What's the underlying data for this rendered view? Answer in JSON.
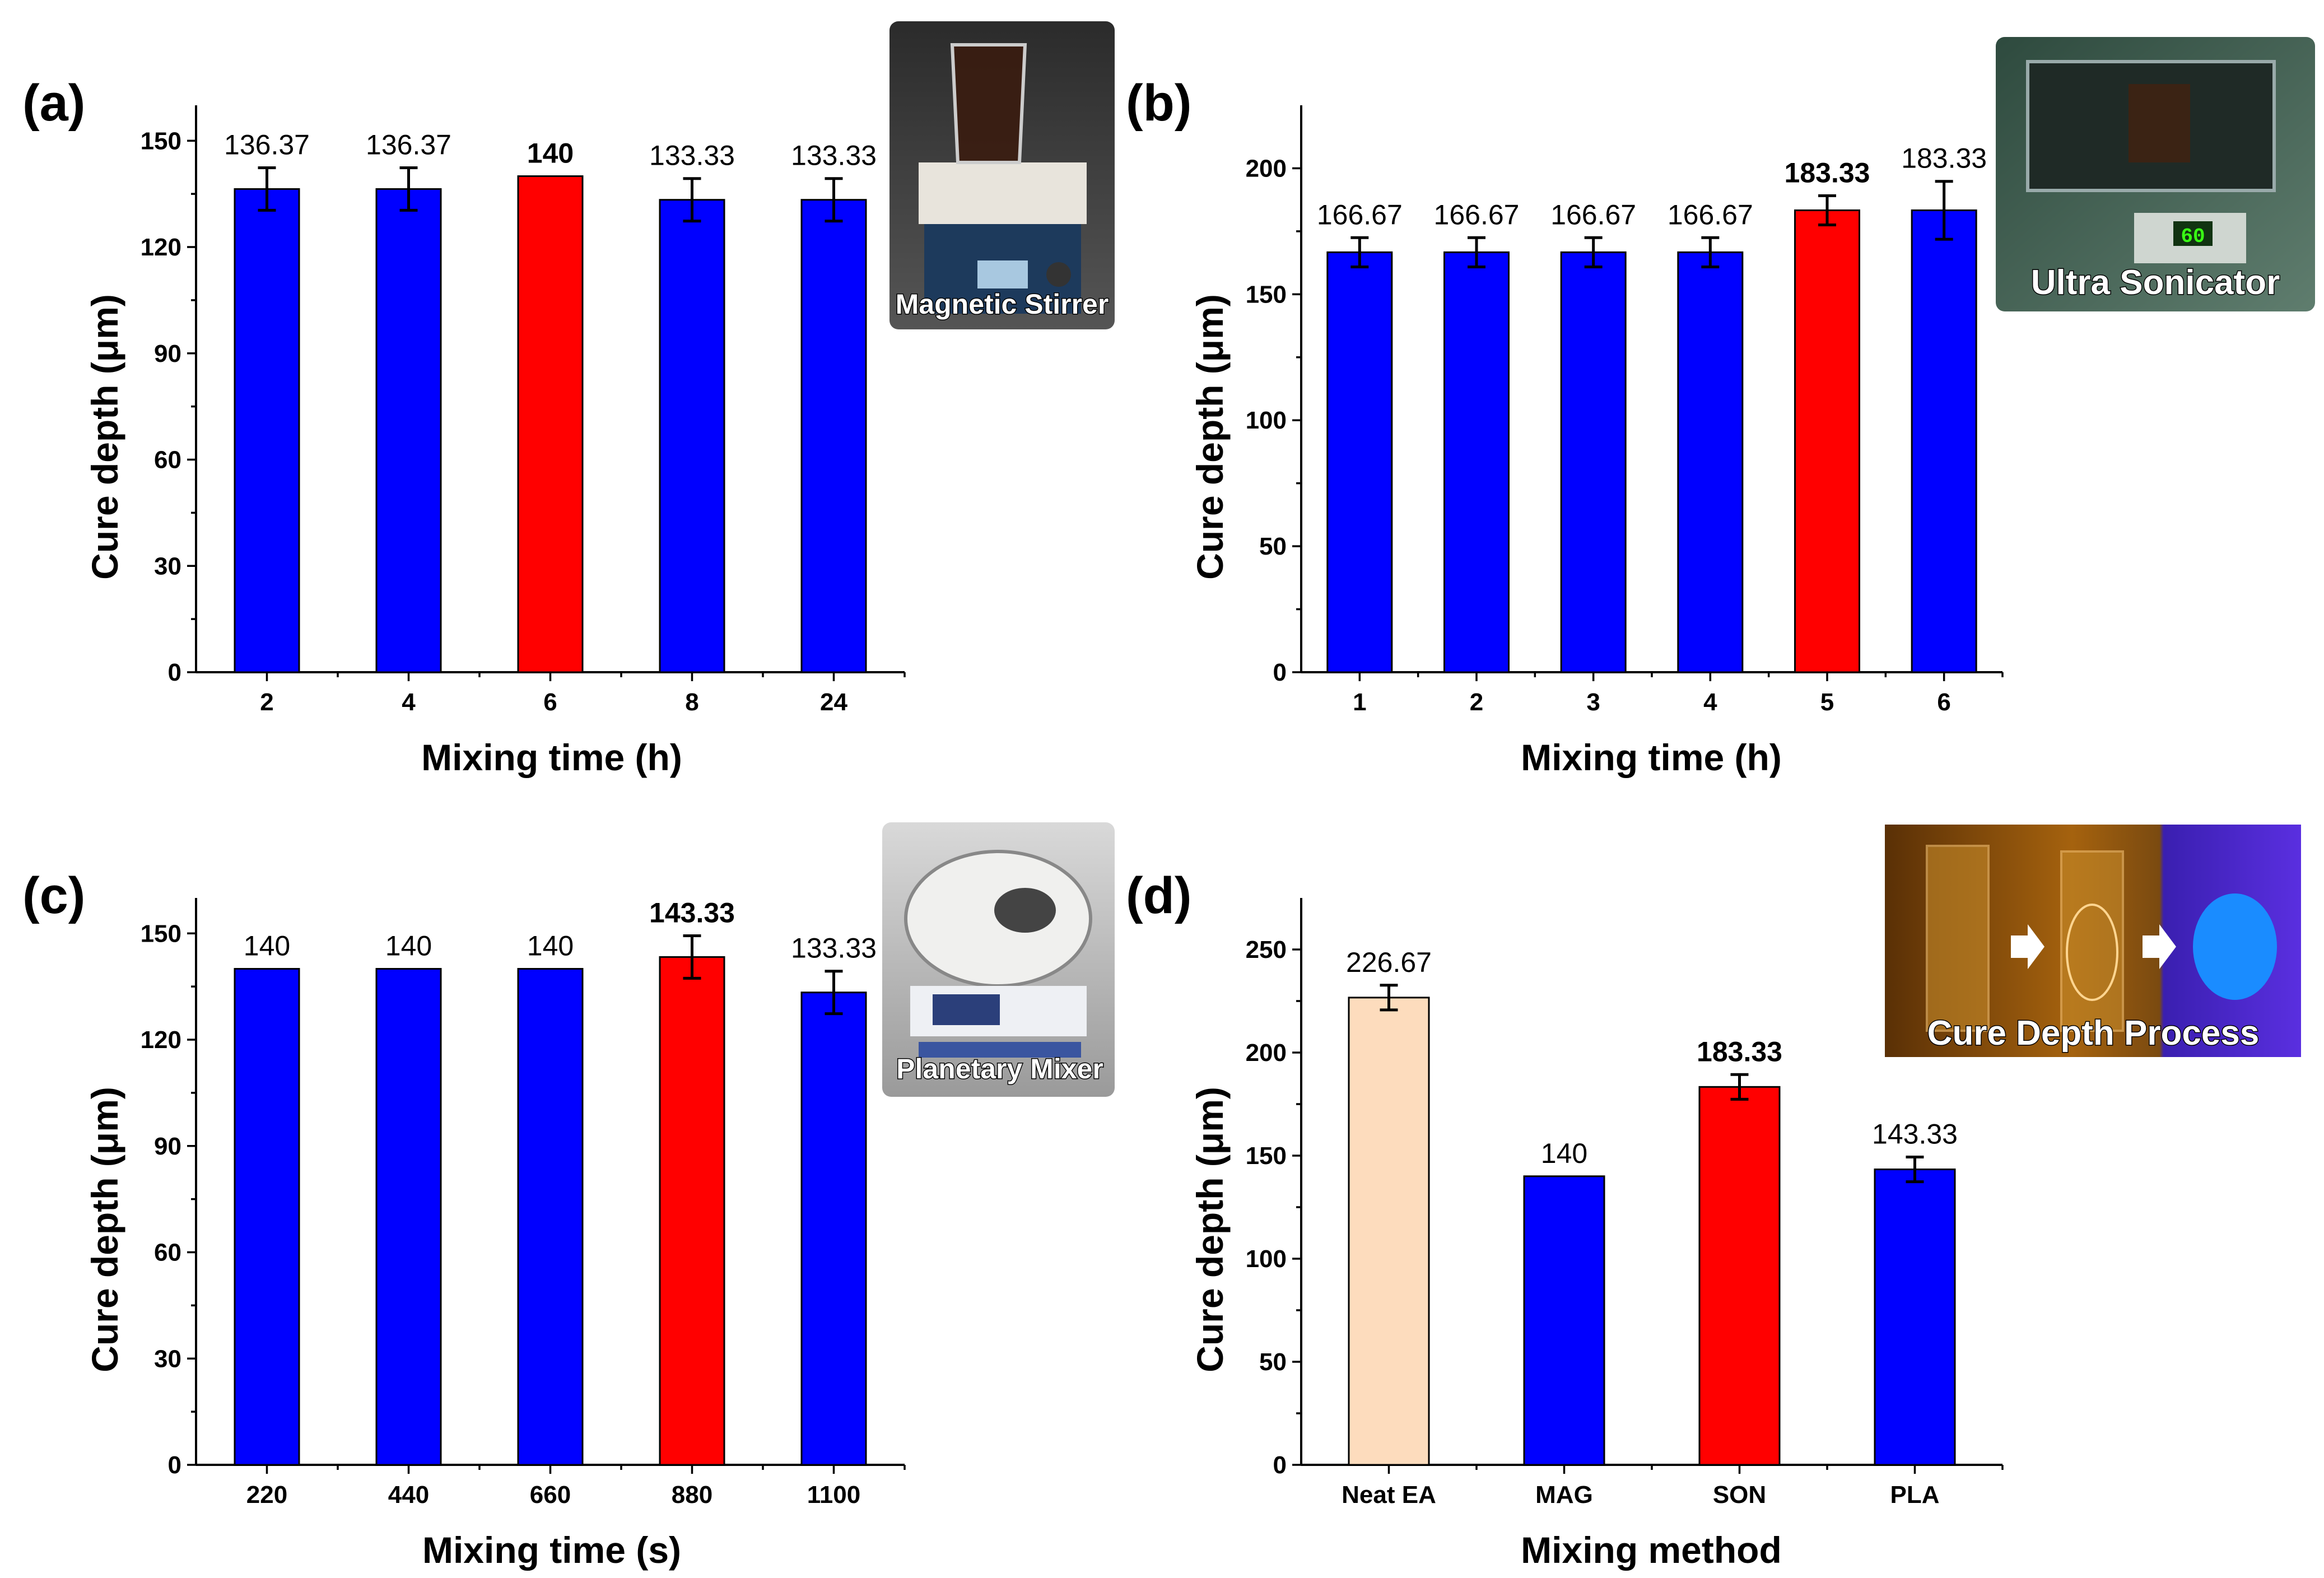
{
  "colors": {
    "bar": "#0000FF",
    "highlight": "#FF0000",
    "neat": "#FDDCBD",
    "outline": "#000000"
  },
  "chart_data": [
    {
      "id": "a",
      "panel_label": "(a)",
      "type": "bar",
      "xlabel": "Mixing time (h)",
      "ylabel": "Cure depth (μm)",
      "categories": [
        "2",
        "4",
        "6",
        "8",
        "24"
      ],
      "values": [
        136.37,
        136.37,
        140,
        133.33,
        133.33
      ],
      "errors": [
        6,
        6,
        0,
        6,
        6
      ],
      "value_labels": [
        "136.37",
        "136.37",
        "140",
        "133.33",
        "133.33"
      ],
      "bar_colors": [
        "bar",
        "bar",
        "highlight",
        "bar",
        "bar"
      ],
      "highlight_index": 2,
      "ylim": [
        0,
        160
      ],
      "yticks": [
        0,
        30,
        60,
        90,
        120,
        150
      ],
      "yticks_minor": [
        15,
        45,
        75,
        105,
        135
      ],
      "inset": {
        "caption": "Magnetic Stirrer",
        "icon": "magnetic-stirrer-photo"
      }
    },
    {
      "id": "b",
      "panel_label": "(b)",
      "type": "bar",
      "xlabel": "Mixing time (h)",
      "ylabel": "Cure depth (μm)",
      "categories": [
        "1",
        "2",
        "3",
        "4",
        "5",
        "6"
      ],
      "values": [
        166.67,
        166.67,
        166.67,
        166.67,
        183.33,
        183.33
      ],
      "errors": [
        5.8,
        5.8,
        5.8,
        5.8,
        5.8,
        11.5
      ],
      "value_labels": [
        "166.67",
        "166.67",
        "166.67",
        "166.67",
        "183.33",
        "183.33"
      ],
      "bar_colors": [
        "bar",
        "bar",
        "bar",
        "bar",
        "highlight",
        "bar"
      ],
      "highlight_index": 4,
      "ylim": [
        0,
        225
      ],
      "yticks": [
        0,
        50,
        100,
        150,
        200
      ],
      "yticks_minor": [
        25,
        75,
        125,
        175
      ],
      "inset": {
        "caption": "Ultra Sonicator",
        "icon": "ultrasonicator-photo",
        "display": "60"
      }
    },
    {
      "id": "c",
      "panel_label": "(c)",
      "type": "bar",
      "xlabel": "Mixing time (s)",
      "ylabel": "Cure depth (μm)",
      "categories": [
        "220",
        "440",
        "660",
        "880",
        "1100"
      ],
      "values": [
        140,
        140,
        140,
        143.33,
        133.33
      ],
      "errors": [
        0,
        0,
        0,
        6,
        6
      ],
      "value_labels": [
        "140",
        "140",
        "140",
        "143.33",
        "133.33"
      ],
      "bar_colors": [
        "bar",
        "bar",
        "bar",
        "highlight",
        "bar"
      ],
      "highlight_index": 3,
      "ylim": [
        0,
        160
      ],
      "yticks": [
        0,
        30,
        60,
        90,
        120,
        150
      ],
      "yticks_minor": [
        15,
        45,
        75,
        105,
        135
      ],
      "inset": {
        "caption": "Planetary Mixer",
        "icon": "planetary-mixer-photo"
      }
    },
    {
      "id": "d",
      "panel_label": "(d)",
      "type": "bar",
      "xlabel": "Mixing method",
      "ylabel": "Cure depth (μm)",
      "categories": [
        "Neat EA",
        "MAG",
        "SON",
        "PLA"
      ],
      "values": [
        226.67,
        140,
        183.33,
        143.33
      ],
      "errors": [
        6,
        0,
        6,
        6
      ],
      "value_labels": [
        "226.67",
        "140",
        "183.33",
        "143.33"
      ],
      "bar_colors": [
        "neat",
        "bar",
        "highlight",
        "bar"
      ],
      "highlight_index": 2,
      "ylim": [
        0,
        275
      ],
      "yticks": [
        0,
        50,
        100,
        150,
        200,
        250
      ],
      "yticks_minor": [
        25,
        75,
        125,
        175,
        225
      ],
      "inset": {
        "caption": "Cure Depth Process",
        "icon": "cure-depth-process-photo"
      }
    }
  ]
}
